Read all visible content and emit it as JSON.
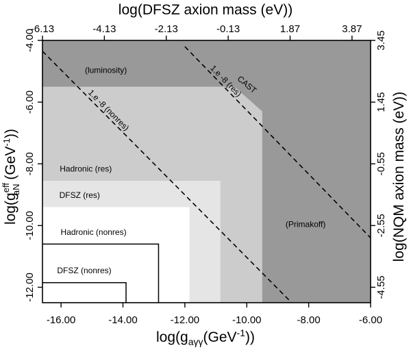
{
  "chart_data": {
    "type": "area",
    "title": "",
    "xlim": [
      -16.6,
      -6.0
    ],
    "ylim": [
      -12.5,
      -4.0
    ],
    "axes": {
      "bottom": {
        "title_main": "log(g",
        "title_sub": "aγγ",
        "title_unit": "(GeV",
        "title_exp": "-1",
        "title_end": "))",
        "ticks": [
          {
            "value": -16.0,
            "label": "-16.00"
          },
          {
            "value": -14.0,
            "label": "-14.00"
          },
          {
            "value": -12.0,
            "label": "-12.00"
          },
          {
            "value": -10.0,
            "label": "-10.00"
          },
          {
            "value": -8.0,
            "label": "-8.00"
          },
          {
            "value": -6.0,
            "label": "-6.00"
          }
        ]
      },
      "top": {
        "title": "log(DFSZ axion mass (eV))",
        "ticks": [
          {
            "value": -16.6,
            "label": "-6.13"
          },
          {
            "value": -14.6,
            "label": "-4.13"
          },
          {
            "value": -12.6,
            "label": "-2.13"
          },
          {
            "value": -10.6,
            "label": "-0.13"
          },
          {
            "value": -8.6,
            "label": "1.87"
          },
          {
            "value": -6.6,
            "label": "3.87"
          }
        ]
      },
      "left": {
        "title_main": "log(g",
        "title_sup": "eff",
        "title_sub": "aN",
        "title_unit": " (GeV",
        "title_exp": "-1",
        "title_end": "))",
        "ticks": [
          {
            "value": -4.0,
            "label": "-4.00"
          },
          {
            "value": -6.0,
            "label": "-6.00"
          },
          {
            "value": -8.0,
            "label": "-8.00"
          },
          {
            "value": -10.0,
            "label": "-10.00"
          },
          {
            "value": -12.0,
            "label": "-12.00"
          }
        ]
      },
      "right": {
        "title": "log(NQM axion mass (eV))",
        "ticks": [
          {
            "value": -4.0,
            "label": "3.45"
          },
          {
            "value": -6.0,
            "label": "1.45"
          },
          {
            "value": -8.0,
            "label": "-0.55"
          },
          {
            "value": -10.0,
            "label": "-2.55"
          },
          {
            "value": -12.0,
            "label": "-4.55"
          }
        ]
      }
    },
    "regions": [
      {
        "name": "primakoff-region",
        "color": "#999999",
        "polygon": [
          [
            -16.6,
            -4.0
          ],
          [
            -6.0,
            -4.0
          ],
          [
            -6.0,
            -12.5
          ],
          [
            -16.6,
            -12.5
          ]
        ]
      },
      {
        "name": "cast-region",
        "color": "#cccccc",
        "polygon": [
          [
            -16.6,
            -5.5
          ],
          [
            -10.4,
            -5.5
          ],
          [
            -9.5,
            -6.3
          ],
          [
            -9.5,
            -12.5
          ],
          [
            -16.6,
            -12.5
          ]
        ]
      },
      {
        "name": "hadronic-res-region",
        "color": "#e5e5e5",
        "polygon": [
          [
            -16.6,
            -8.55
          ],
          [
            -10.85,
            -8.55
          ],
          [
            -10.85,
            -12.5
          ],
          [
            -16.6,
            -12.5
          ]
        ]
      },
      {
        "name": "dfsz-res-region",
        "color": "#ffffff",
        "polygon": [
          [
            -16.6,
            -9.4
          ],
          [
            -11.85,
            -9.4
          ],
          [
            -11.85,
            -12.5
          ],
          [
            -16.6,
            -12.5
          ]
        ]
      }
    ],
    "outlines": [
      {
        "name": "hadronic-nonres-outline",
        "points": [
          [
            -16.6,
            -10.6
          ],
          [
            -12.85,
            -10.6
          ],
          [
            -12.85,
            -12.5
          ]
        ]
      },
      {
        "name": "dfsz-nonres-outline",
        "points": [
          [
            -16.6,
            -11.85
          ],
          [
            -13.9,
            -11.85
          ],
          [
            -13.9,
            -12.5
          ]
        ]
      }
    ],
    "dashed_lines": [
      {
        "name": "nonres-limit-line",
        "label": "1.e -8 (nonres)",
        "points": [
          [
            -16.6,
            -4.35
          ],
          [
            -8.55,
            -12.5
          ]
        ]
      },
      {
        "name": "res-limit-line",
        "label": "1.e -8 (res)",
        "points": [
          [
            -12.0,
            -4.2
          ],
          [
            -6.0,
            -10.4
          ]
        ]
      }
    ],
    "annotations": [
      {
        "name": "luminosity-label",
        "text": "(luminosity)",
        "x": -14.55,
        "y": -5.05,
        "rotation": 0
      },
      {
        "name": "primakoff-label",
        "text": "(Primakoff)",
        "x": -8.1,
        "y": -10.05,
        "rotation": 0
      },
      {
        "name": "hadronic-res-label",
        "text": "Hadronic (res)",
        "x": -15.2,
        "y": -8.25,
        "rotation": 0
      },
      {
        "name": "dfsz-res-label",
        "text": "DFSZ (res)",
        "x": -15.4,
        "y": -9.1,
        "rotation": 0
      },
      {
        "name": "hadronic-nonres-label",
        "text": "Hadronic (nonres)",
        "x": -14.95,
        "y": -10.3,
        "rotation": 0
      },
      {
        "name": "dfsz-nonres-label",
        "text": "DFSZ (nonres)",
        "x": -15.25,
        "y": -11.55,
        "rotation": 0
      },
      {
        "name": "cast-label",
        "text": "CAST",
        "x": -10.05,
        "y": -5.5,
        "rotation": 40
      }
    ]
  }
}
